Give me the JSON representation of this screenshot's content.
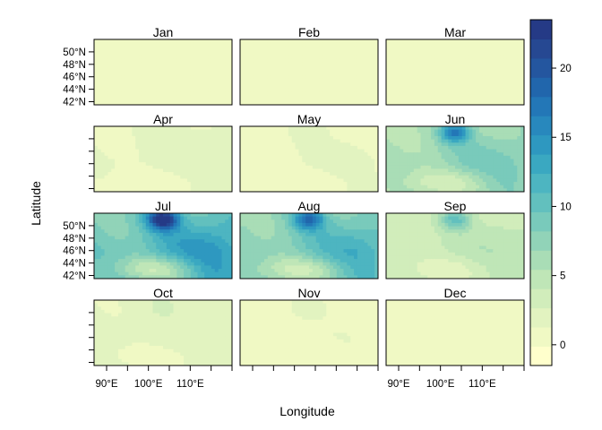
{
  "chart_data": {
    "type": "heatmap",
    "xlabel": "Longitude",
    "ylabel": "Latitude",
    "panels": [
      {
        "month": "Jan",
        "base": 0.3,
        "peak": 0.6,
        "blob": 0.4,
        "east": 0.2
      },
      {
        "month": "Feb",
        "base": 0.2,
        "peak": 0.6,
        "blob": 0.2,
        "east": 0.1
      },
      {
        "month": "Mar",
        "base": 0.4,
        "peak": 0.8,
        "blob": 0.4,
        "east": 0.3
      },
      {
        "month": "Apr",
        "base": 1.2,
        "peak": 2.2,
        "blob": 1.0,
        "east": 0.8
      },
      {
        "month": "May",
        "base": 1.0,
        "peak": 1.6,
        "blob": 0.8,
        "east": 0.6
      },
      {
        "month": "Jun",
        "base": 5.5,
        "peak": 15.5,
        "blob": 5.0,
        "east": 4.5
      },
      {
        "month": "Jul",
        "base": 8.5,
        "peak": 23.0,
        "blob": 7.0,
        "east": 9.0
      },
      {
        "month": "Aug",
        "base": 7.0,
        "peak": 17.0,
        "blob": 6.0,
        "east": 8.0
      },
      {
        "month": "Sep",
        "base": 3.2,
        "peak": 9.5,
        "blob": 3.0,
        "east": 2.5
      },
      {
        "month": "Oct",
        "base": 1.4,
        "peak": 3.0,
        "blob": 1.2,
        "east": 1.0
      },
      {
        "month": "Nov",
        "base": 0.8,
        "peak": 2.0,
        "blob": 0.6,
        "east": 0.6
      },
      {
        "month": "Dec",
        "base": 0.3,
        "peak": 1.2,
        "blob": 0.3,
        "east": 0.2
      }
    ],
    "longitude_ticks": [
      "90°E",
      "100°E",
      "110°E"
    ],
    "longitude_tick_values": [
      90,
      100,
      110
    ],
    "longitude_range": [
      87,
      120
    ],
    "latitude_ticks": [
      "42°N",
      "44°N",
      "46°N",
      "48°N",
      "50°N"
    ],
    "latitude_tick_values": [
      42,
      44,
      46,
      48,
      50
    ],
    "latitude_range": [
      41.5,
      52
    ],
    "feature_lon": 103.5,
    "feature_lat": 51,
    "colorbar": {
      "ticks": [
        0,
        5,
        10,
        15,
        20
      ],
      "range": [
        -1.5,
        23.5
      ],
      "levels": 18,
      "colors": [
        "#ffffcc",
        "#f0f9c4",
        "#e2f3c0",
        "#d1edbb",
        "#bfe6b7",
        "#a9ddb6",
        "#91d3b8",
        "#79cabb",
        "#62c0be",
        "#4db5c1",
        "#3aa8c1",
        "#2e98c0",
        "#2888bd",
        "#2377b7",
        "#2166ac",
        "#24569f",
        "#264892",
        "#253a86"
      ]
    },
    "grid": false,
    "legend_placement": "right"
  }
}
